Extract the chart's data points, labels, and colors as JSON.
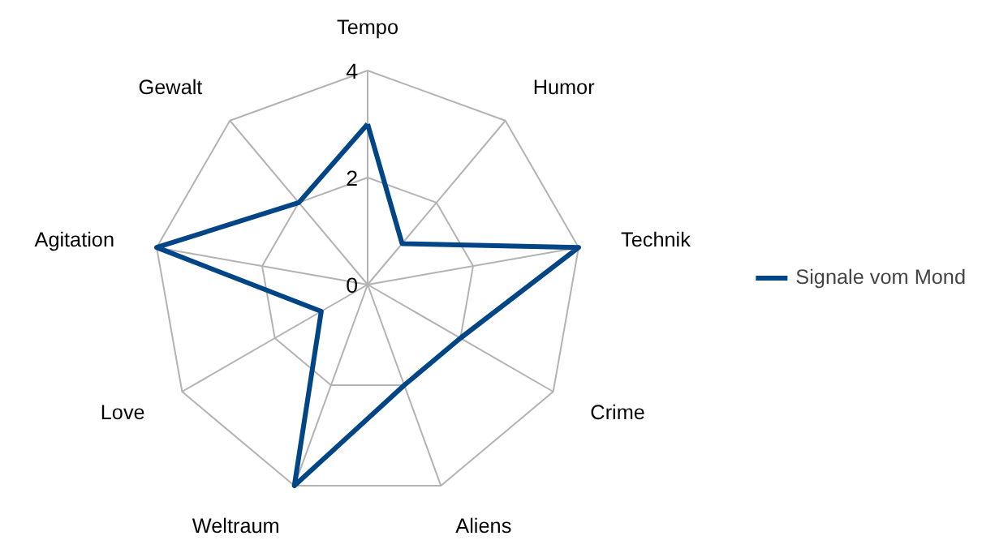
{
  "chart_data": {
    "type": "radar",
    "categories": [
      "Tempo",
      "Humor",
      "Technik",
      "Crime",
      "Aliens",
      "Weltraum",
      "Love",
      "Agitation",
      "Gewalt"
    ],
    "series": [
      {
        "name": "Signale vom Mond",
        "color": "#004586",
        "values": [
          3,
          1,
          4,
          2,
          2,
          4,
          1,
          4,
          2
        ]
      }
    ],
    "ylim": [
      0,
      4
    ],
    "yticks": [
      0,
      2,
      4
    ],
    "grid": true,
    "legend": "right",
    "marker": "none"
  }
}
